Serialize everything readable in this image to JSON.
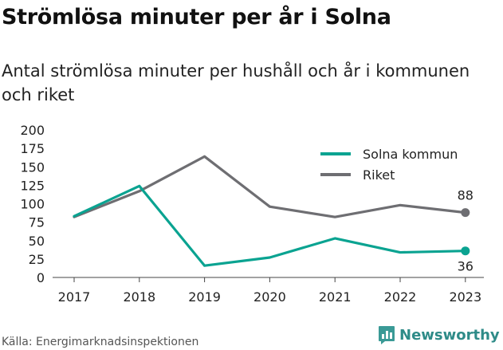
{
  "title": "Strömlösa minuter per år i Solna",
  "subtitle": "Antal strömlösa minuter per hushåll och år i kommunen och riket",
  "source": "Källa: Energimarknadsinspektionen",
  "brand": {
    "name": "Newsworthy",
    "icon": "newsworthy-logo-icon",
    "color": "#2e8b88"
  },
  "chart_data": {
    "type": "line",
    "x": [
      "2017",
      "2018",
      "2019",
      "2020",
      "2021",
      "2022",
      "2023"
    ],
    "ylim": [
      0,
      200
    ],
    "yticks": [
      "0",
      "25",
      "50",
      "75",
      "100",
      "125",
      "150",
      "175",
      "200"
    ],
    "grid": false,
    "legend_position": "top-right",
    "series": [
      {
        "name": "Solna kommun",
        "color": "#0aa391",
        "values": [
          83,
          124,
          16,
          27,
          53,
          34,
          36
        ],
        "end_label": "36"
      },
      {
        "name": "Riket",
        "color": "#6e6e72",
        "values": [
          82,
          117,
          164,
          96,
          82,
          98,
          88
        ],
        "end_label": "88"
      }
    ]
  }
}
